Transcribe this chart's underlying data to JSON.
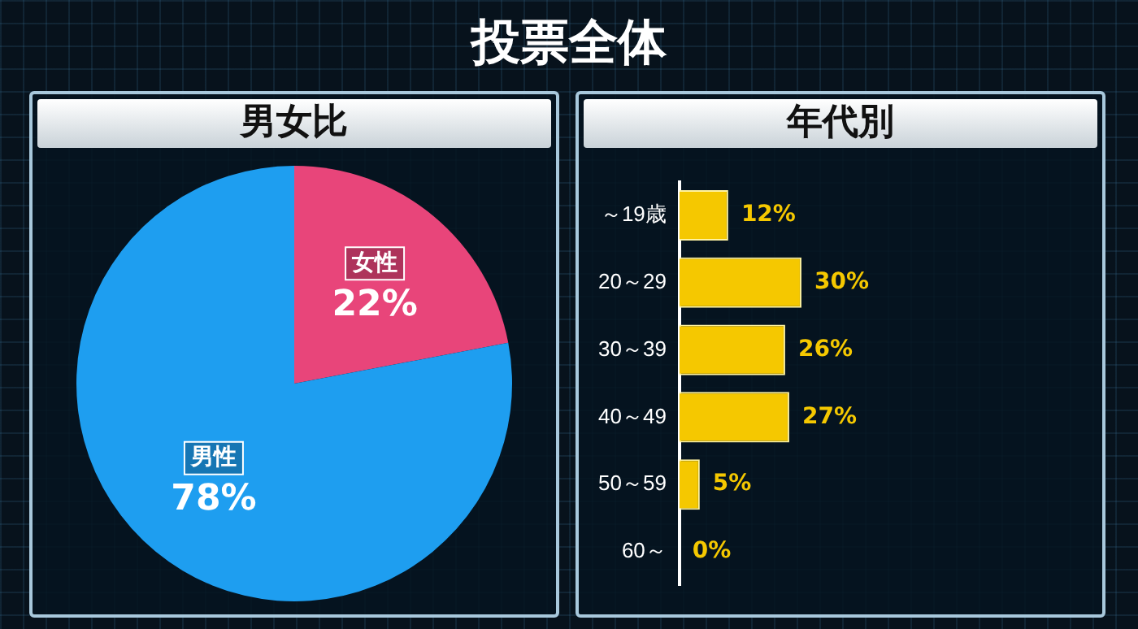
{
  "chart_data": [
    {
      "type": "pie",
      "title": "男女比",
      "annotations": [
        "投票全体"
      ],
      "categories": [
        "女性",
        "男性"
      ],
      "values": [
        22,
        78
      ],
      "colors": [
        "#e8457a",
        "#1e9ef0"
      ],
      "value_labels": [
        "22%",
        "78%"
      ],
      "legend": false
    },
    {
      "type": "bar",
      "title": "年代別",
      "orientation": "horizontal",
      "categories": [
        "～19歳",
        "20～29",
        "30～39",
        "40～49",
        "50～59",
        "60～"
      ],
      "values": [
        12,
        30,
        26,
        27,
        5,
        0
      ],
      "color": "#f5c800",
      "value_labels": [
        "12%",
        "30%",
        "26%",
        "27%",
        "5%",
        "0%"
      ],
      "legend": false
    }
  ]
}
